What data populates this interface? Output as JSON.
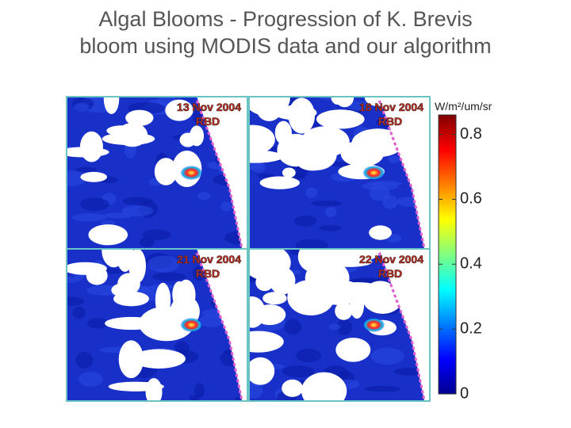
{
  "title": [
    "Algal Blooms - Progression of K. Brevis",
    "bloom using MODIS data and our algorithm"
  ],
  "panels": [
    {
      "date": "13 Nov 2004",
      "label": "RBD"
    },
    {
      "date": "18 Nov 2004",
      "label": "RBD"
    },
    {
      "date": "21 Nov 2004",
      "label": "RBD"
    },
    {
      "date": "22 Nov 2004",
      "label": "RBD"
    }
  ],
  "colorbar": {
    "unit": "W/m²/um/sr",
    "range": [
      0,
      0.86
    ],
    "ticks": [
      0,
      0.2,
      0.4,
      0.6,
      0.8
    ]
  }
}
